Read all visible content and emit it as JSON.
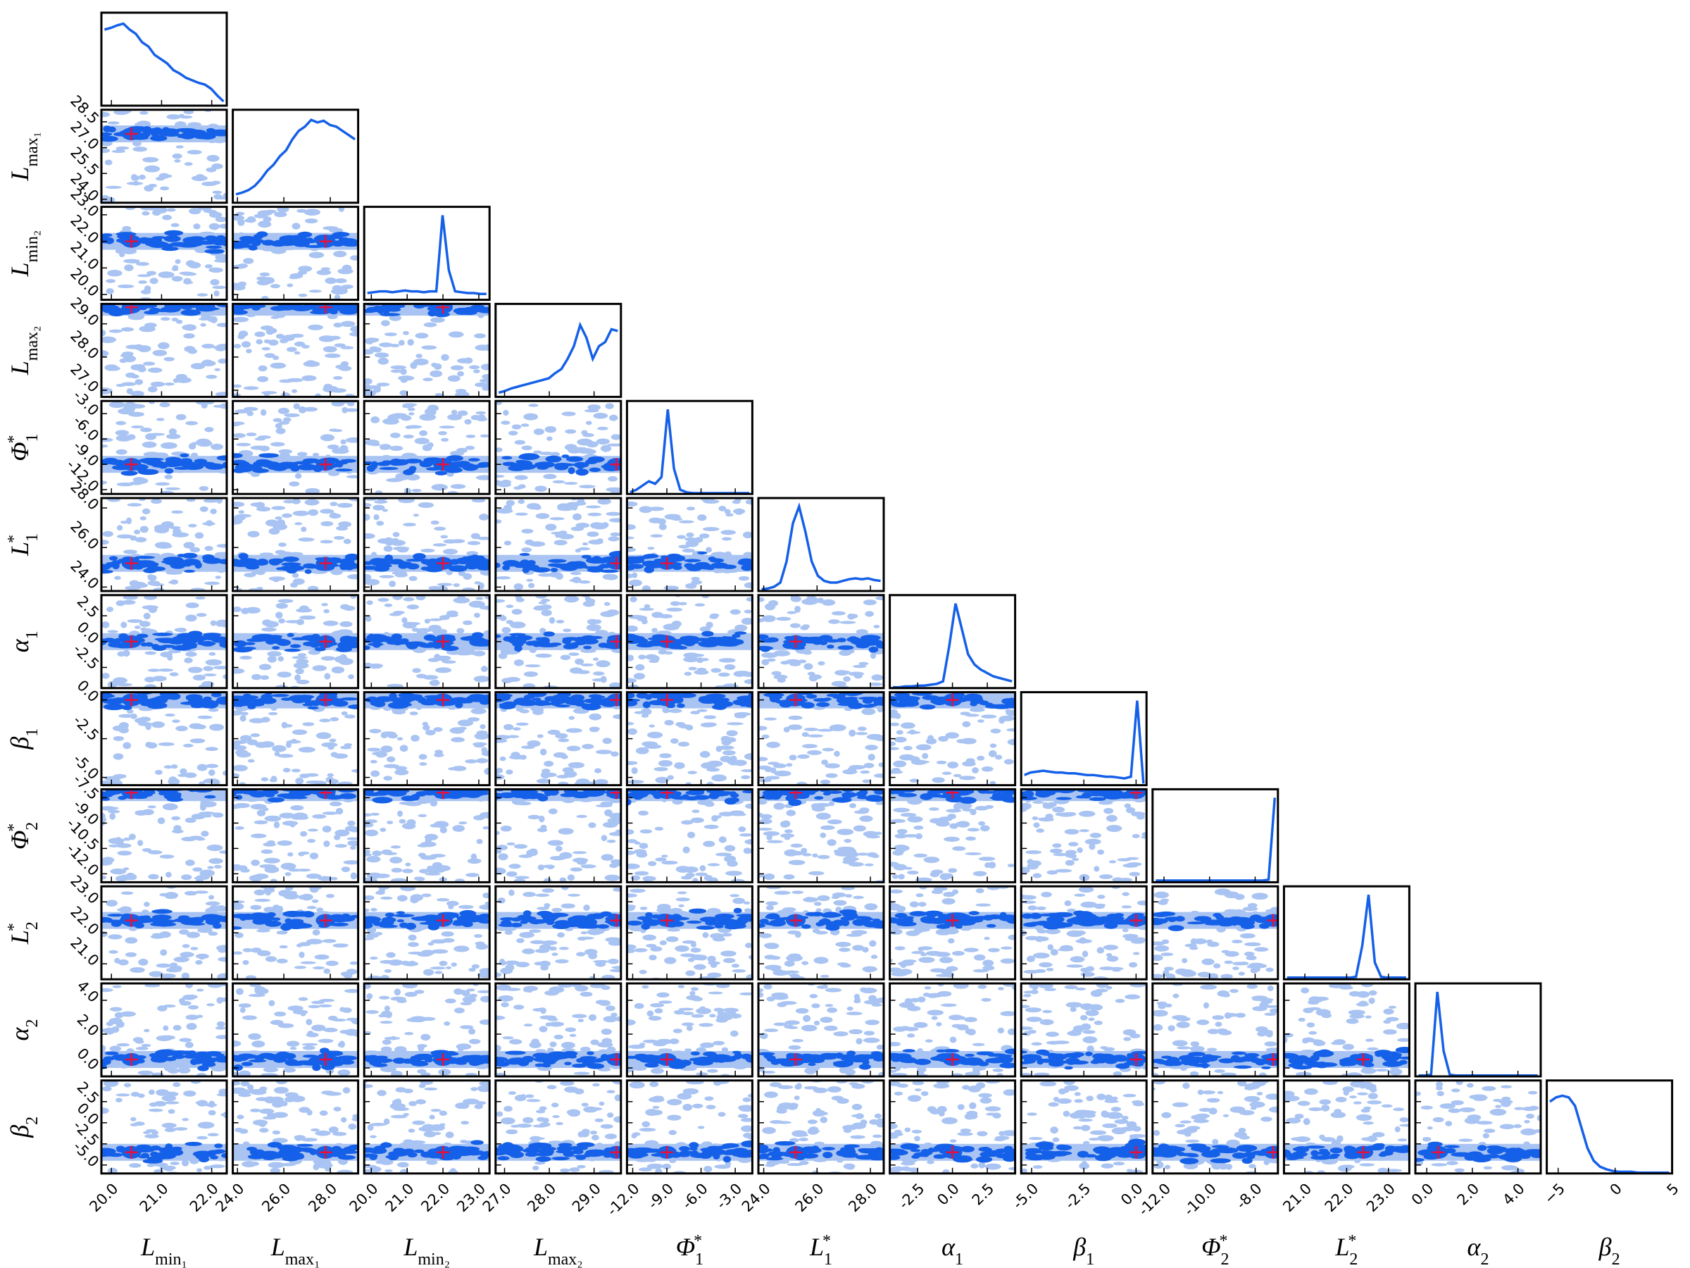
{
  "chart_data": {
    "type": "corner",
    "parameters": [
      {
        "symbol": "L",
        "sub": "min₁",
        "xlim": [
          19.8,
          22.3
        ],
        "truth": 20.4,
        "xticks": [
          {
            "value": 20,
            "label": "20.0"
          },
          {
            "value": 21,
            "label": "21.0"
          },
          {
            "value": 22,
            "label": "22.0"
          }
        ],
        "yticks": [],
        "hist": [
          0.9,
          0.92,
          0.95,
          0.97,
          0.9,
          0.85,
          0.75,
          0.7,
          0.6,
          0.55,
          0.5,
          0.42,
          0.38,
          0.33,
          0.3,
          0.27,
          0.25,
          0.2,
          0.12,
          0.05
        ]
      },
      {
        "symbol": "L",
        "sub": "max₁",
        "xlim": [
          23.8,
          29.2
        ],
        "truth": 27.8,
        "xticks": [
          {
            "value": 24,
            "label": "24.0"
          },
          {
            "value": 26,
            "label": "26.0"
          },
          {
            "value": 28,
            "label": "28.0"
          }
        ],
        "yticks": [
          {
            "value": 24,
            "label": "24.0"
          },
          {
            "value": 25.5,
            "label": "25.5"
          },
          {
            "value": 27,
            "label": "27.0"
          },
          {
            "value": 28.5,
            "label": "28.5"
          }
        ],
        "hist": [
          0.1,
          0.12,
          0.15,
          0.2,
          0.28,
          0.38,
          0.45,
          0.55,
          0.62,
          0.75,
          0.85,
          0.9,
          0.98,
          0.95,
          0.97,
          0.92,
          0.9,
          0.85,
          0.8,
          0.75
        ]
      },
      {
        "symbol": "L",
        "sub": "min₂",
        "xlim": [
          19.8,
          23.3
        ],
        "truth": 22.0,
        "xticks": [
          {
            "value": 20,
            "label": "20.0"
          },
          {
            "value": 21,
            "label": "21.0"
          },
          {
            "value": 22,
            "label": "22.0"
          },
          {
            "value": 23,
            "label": "23.0"
          }
        ],
        "yticks": [
          {
            "value": 20,
            "label": "20.0"
          },
          {
            "value": 21,
            "label": "21.0"
          },
          {
            "value": 22,
            "label": "22.0"
          },
          {
            "value": 23,
            "label": "23.0"
          }
        ],
        "hist": [
          0.08,
          0.09,
          0.1,
          0.1,
          0.09,
          0.1,
          0.11,
          0.1,
          0.1,
          0.09,
          0.1,
          0.1,
          1.0,
          0.35,
          0.1,
          0.09,
          0.08,
          0.08,
          0.07,
          0.07
        ]
      },
      {
        "symbol": "L",
        "sub": "max₂",
        "xlim": [
          26.8,
          29.6
        ],
        "truth": 29.5,
        "xticks": [
          {
            "value": 27,
            "label": "27.0"
          },
          {
            "value": 28,
            "label": "28.0"
          },
          {
            "value": 29,
            "label": "29.0"
          }
        ],
        "yticks": [
          {
            "value": 27,
            "label": "27.0"
          },
          {
            "value": 28,
            "label": "28.0"
          },
          {
            "value": 29,
            "label": "29.0"
          }
        ],
        "hist": [
          0.05,
          0.07,
          0.1,
          0.12,
          0.14,
          0.16,
          0.18,
          0.2,
          0.22,
          0.28,
          0.33,
          0.45,
          0.6,
          0.85,
          0.7,
          0.45,
          0.6,
          0.65,
          0.8,
          0.78
        ]
      },
      {
        "symbol": "Φ",
        "sub": "1",
        "sup": "*",
        "xlim": [
          -12.5,
          -1.5
        ],
        "truth": -9.0,
        "xticks": [
          {
            "value": -12,
            "label": "-12.0"
          },
          {
            "value": -9,
            "label": "-9.0"
          },
          {
            "value": -6,
            "label": "-6.0"
          },
          {
            "value": -3,
            "label": "-3.0"
          }
        ],
        "yticks": [
          {
            "value": -12,
            "label": "-12.0"
          },
          {
            "value": -9,
            "label": "-9.0"
          },
          {
            "value": -6,
            "label": "-6.0"
          },
          {
            "value": -3,
            "label": "-3.0"
          }
        ],
        "hist": [
          0.02,
          0.05,
          0.1,
          0.15,
          0.12,
          0.2,
          1.0,
          0.3,
          0.05,
          0.02,
          0.01,
          0.01,
          0.01,
          0.01,
          0.01,
          0.01,
          0.01,
          0.01,
          0.01,
          0.01
        ]
      },
      {
        "symbol": "L",
        "sub": "1",
        "sup": "*",
        "xlim": [
          23.8,
          28.5
        ],
        "truth": 25.2,
        "xticks": [
          {
            "value": 24,
            "label": "24.0"
          },
          {
            "value": 26,
            "label": "26.0"
          },
          {
            "value": 28,
            "label": "28.0"
          }
        ],
        "yticks": [
          {
            "value": 24,
            "label": "24.0"
          },
          {
            "value": 26,
            "label": "26.0"
          },
          {
            "value": 28,
            "label": "28.0"
          }
        ],
        "hist": [
          0.02,
          0.03,
          0.05,
          0.1,
          0.35,
          0.8,
          1.0,
          0.7,
          0.35,
          0.18,
          0.12,
          0.1,
          0.1,
          0.12,
          0.14,
          0.15,
          0.14,
          0.15,
          0.13,
          0.12
        ]
      },
      {
        "symbol": "α",
        "sub": "1",
        "xlim": [
          -4.5,
          4.5
        ],
        "truth": 0.0,
        "xticks": [
          {
            "value": -2.5,
            "label": "-2.5"
          },
          {
            "value": 0,
            "label": "0.0"
          },
          {
            "value": 2.5,
            "label": "2.5"
          }
        ],
        "yticks": [
          {
            "value": -2.5,
            "label": "-2.5"
          },
          {
            "value": 0,
            "label": "0.0"
          },
          {
            "value": 2.5,
            "label": "2.5"
          }
        ],
        "hist": [
          0.01,
          0.01,
          0.02,
          0.02,
          0.03,
          0.03,
          0.04,
          0.05,
          0.08,
          0.5,
          1.0,
          0.7,
          0.4,
          0.28,
          0.22,
          0.18,
          0.14,
          0.12,
          0.1,
          0.08
        ]
      },
      {
        "symbol": "β",
        "sub": "1",
        "xlim": [
          -5.5,
          0.5
        ],
        "truth": 0.0,
        "xticks": [
          {
            "value": -5,
            "label": "-5.0"
          },
          {
            "value": -2.5,
            "label": "-2.5"
          },
          {
            "value": 0,
            "label": "0.0"
          }
        ],
        "yticks": [
          {
            "value": -5,
            "label": "-5.0"
          },
          {
            "value": -2.5,
            "label": "-2.5"
          },
          {
            "value": 0,
            "label": "0.0"
          }
        ],
        "hist": [
          0.12,
          0.15,
          0.16,
          0.17,
          0.16,
          0.15,
          0.15,
          0.14,
          0.14,
          0.13,
          0.12,
          0.12,
          0.11,
          0.1,
          0.1,
          0.09,
          0.08,
          0.1,
          1.0,
          0.02
        ]
      },
      {
        "symbol": "Φ",
        "sub": "2",
        "sup": "*",
        "xlim": [
          -12.5,
          -7.0
        ],
        "truth": -7.2,
        "xticks": [
          {
            "value": -12,
            "label": "-12.0"
          },
          {
            "value": -10,
            "label": "-10.0"
          },
          {
            "value": -8,
            "label": "-8.0"
          }
        ],
        "yticks": [
          {
            "value": -12,
            "label": "-12.0"
          },
          {
            "value": -10.5,
            "label": "-10.5"
          },
          {
            "value": -9,
            "label": "-9.0"
          },
          {
            "value": -7.5,
            "label": "-7.5"
          }
        ],
        "hist": [
          0.02,
          0.02,
          0.02,
          0.02,
          0.02,
          0.02,
          0.02,
          0.02,
          0.02,
          0.02,
          0.02,
          0.02,
          0.02,
          0.02,
          0.02,
          0.02,
          0.02,
          0.02,
          0.03,
          1.0
        ]
      },
      {
        "symbol": "L",
        "sub": "2",
        "sup": "*",
        "xlim": [
          20.5,
          23.5
        ],
        "truth": 22.4,
        "xticks": [
          {
            "value": 21,
            "label": "21.0"
          },
          {
            "value": 22,
            "label": "22.0"
          },
          {
            "value": 23,
            "label": "23.0"
          }
        ],
        "yticks": [
          {
            "value": 21,
            "label": "21.0"
          },
          {
            "value": 22,
            "label": "22.0"
          },
          {
            "value": 23,
            "label": "23.0"
          }
        ],
        "hist": [
          0.02,
          0.02,
          0.02,
          0.02,
          0.02,
          0.02,
          0.02,
          0.02,
          0.02,
          0.02,
          0.02,
          0.03,
          0.4,
          1.0,
          0.2,
          0.03,
          0.02,
          0.02,
          0.02,
          0.02
        ]
      },
      {
        "symbol": "α",
        "sub": "2",
        "xlim": [
          -0.5,
          5.0
        ],
        "truth": 0.5,
        "xticks": [
          {
            "value": 0,
            "label": "0.0"
          },
          {
            "value": 2,
            "label": "2.0"
          },
          {
            "value": 4,
            "label": "4.0"
          }
        ],
        "yticks": [
          {
            "value": 0,
            "label": "0.0"
          },
          {
            "value": 2,
            "label": "2.0"
          },
          {
            "value": 4,
            "label": "4.0"
          }
        ],
        "hist": [
          0.01,
          0.01,
          0.02,
          1.0,
          0.3,
          0.02,
          0.01,
          0.01,
          0.01,
          0.01,
          0.01,
          0.01,
          0.01,
          0.01,
          0.01,
          0.01,
          0.01,
          0.01,
          0.01,
          0.01
        ]
      },
      {
        "symbol": "β",
        "sub": "2",
        "xlim": [
          -6.0,
          5.0
        ],
        "truth": -3.5,
        "xticks": [
          {
            "value": -5,
            "label": "−5"
          },
          0,
          5
        ],
        "yticks": [
          {
            "value": -5,
            "label": "-5.0"
          },
          {
            "value": -2.5,
            "label": "-2.5"
          },
          {
            "value": 0,
            "label": "0.0"
          },
          {
            "value": 2.5,
            "label": "2.5"
          }
        ],
        "hist": [
          0.85,
          0.9,
          0.92,
          0.9,
          0.8,
          0.55,
          0.3,
          0.15,
          0.08,
          0.05,
          0.03,
          0.02,
          0.02,
          0.02,
          0.01,
          0.01,
          0.01,
          0.01,
          0.01,
          0.01
        ]
      }
    ],
    "hist_ylim": [
      0,
      1.1
    ],
    "line_color": "#1560e8",
    "dark_color": "#1560e8",
    "light_color": "#a9c4f2",
    "truth_color": "#e8103a"
  }
}
